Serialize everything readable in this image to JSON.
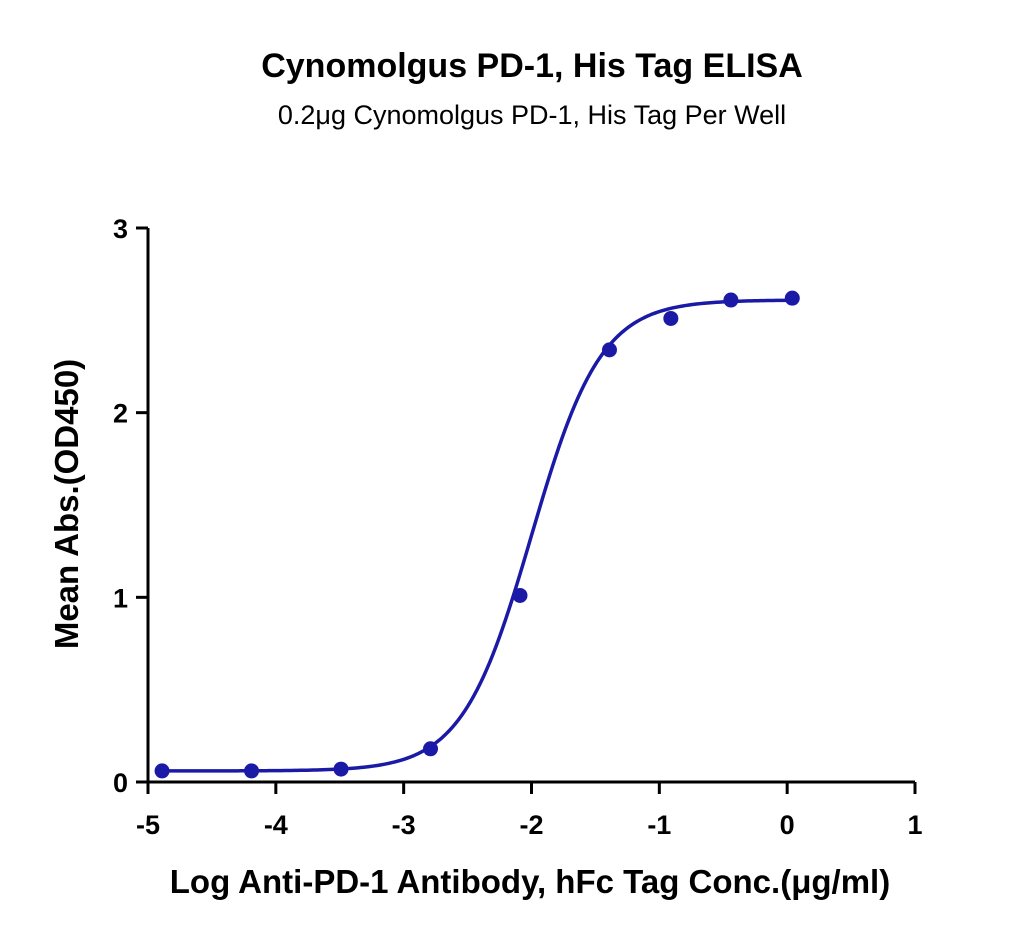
{
  "chart_data": {
    "type": "scatter",
    "title": "Cynomolgus PD-1, His Tag ELISA",
    "subtitle": "0.2μg Cynomolgus PD-1, His Tag Per Well",
    "xlabel": "Log Anti-PD-1 Antibody, hFc Tag Conc.(μg/ml)",
    "ylabel": "Mean Abs.(OD450)",
    "xlim": [
      -5,
      1
    ],
    "ylim": [
      0,
      3
    ],
    "x_ticks": [
      -5,
      -4,
      -3,
      -2,
      -1,
      0,
      1
    ],
    "x_tick_labels": [
      "-5",
      "-4",
      "-3",
      "-2",
      "-1",
      "0",
      "1"
    ],
    "y_ticks": [
      0,
      1,
      2,
      3
    ],
    "y_tick_labels": [
      "0",
      "1",
      "2",
      "3"
    ],
    "grid": false,
    "series": [
      {
        "color": "#1a1aa6",
        "x": [
          -4.89,
          -4.19,
          -3.49,
          -2.79,
          -2.09,
          -1.39,
          -0.91,
          -0.44,
          0.04
        ],
        "y": [
          0.06,
          0.06,
          0.07,
          0.18,
          1.01,
          2.34,
          2.51,
          2.61,
          2.62
        ],
        "fit": {
          "model": "4PL",
          "bottom": 0.06,
          "top": 2.61,
          "logEC50": -2.0,
          "hill": 1.6,
          "x_range": [
            -4.89,
            0.04
          ]
        }
      }
    ]
  }
}
